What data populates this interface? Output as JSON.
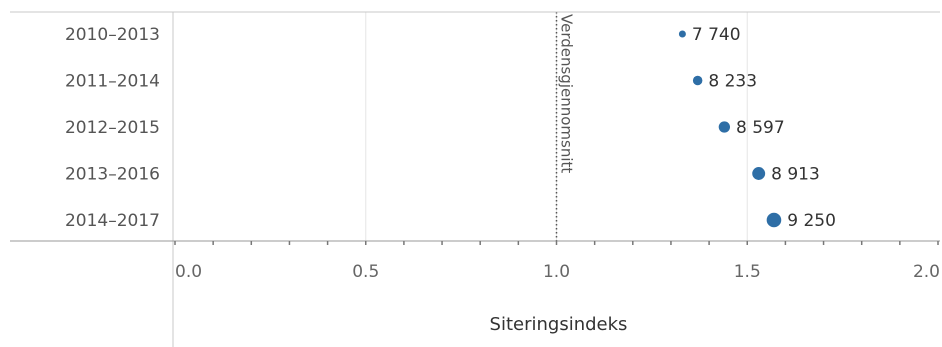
{
  "chart_data": {
    "type": "scatter",
    "categories": [
      "2010–2013",
      "2011–2014",
      "2012–2015",
      "2013–2016",
      "2014–2017"
    ],
    "values": [
      1.33,
      1.37,
      1.44,
      1.53,
      1.57
    ],
    "data_labels": [
      "7 740",
      "8 233",
      "8 597",
      "8 913",
      "9 250"
    ],
    "point_size_values": [
      7740,
      8233,
      8597,
      8913,
      9250
    ],
    "xlabel": "Siteringsindeks",
    "xlim": [
      0,
      2
    ],
    "x_ticks": [
      "0.0",
      "0.5",
      "1.0",
      "1.5",
      "2.0"
    ],
    "reference_line": {
      "value": 1.0,
      "label": "Verdensgjennomsnitt"
    },
    "grid": true,
    "colors": {
      "point": "#2e6ea6",
      "reference": "#555555",
      "grid": "#e6e6e6",
      "axis": "#c8c8c8"
    }
  }
}
